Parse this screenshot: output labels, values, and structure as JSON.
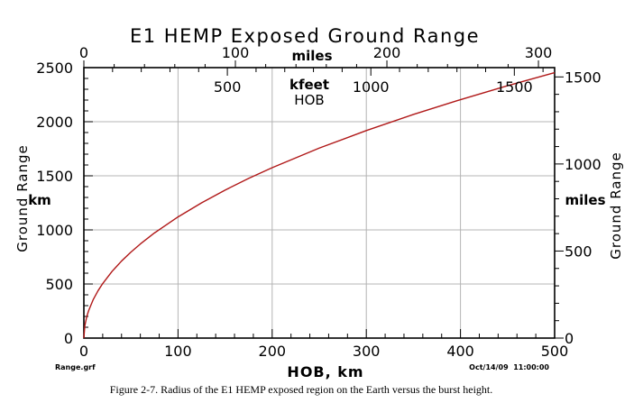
{
  "chart_data": {
    "type": "line",
    "title": "E1 HEMP Exposed Ground Range",
    "xlabel": "HOB, km",
    "ylabel_left": "Ground Range",
    "ylabel_left_unit": "km",
    "ylabel_right": "Ground Range",
    "ylabel_right_unit": "miles",
    "top_axis_miles_label": "miles",
    "top_axis_kfeet_label": "kfeet",
    "top_axis_kfeet_sublabel": "HOB",
    "xlim": [
      0,
      500
    ],
    "ylim": [
      0,
      2500
    ],
    "x_ticks": [
      0,
      100,
      200,
      300,
      400,
      500
    ],
    "y_ticks": [
      0,
      500,
      1000,
      1500,
      2000,
      2500
    ],
    "right_ticks_miles": [
      0,
      500,
      1000,
      1500
    ],
    "top_ticks_miles": [
      0,
      100,
      200,
      300
    ],
    "top_ticks_kfeet": [
      500,
      1000,
      1500
    ],
    "grid": true,
    "series": [
      {
        "name": "Exposed ground range",
        "color": "#b01818",
        "x": [
          0,
          1,
          3,
          5,
          10,
          15,
          20,
          30,
          40,
          50,
          60,
          75,
          100,
          125,
          150,
          175,
          200,
          250,
          300,
          350,
          400,
          450,
          500
        ],
        "y": [
          0,
          113,
          196,
          252,
          357,
          437,
          504,
          617,
          712,
          795,
          870,
          972,
          1120,
          1250,
          1368,
          1476,
          1575,
          1756,
          1918,
          2067,
          2204,
          2333,
          2454
        ]
      }
    ]
  },
  "footer": {
    "file_label": "Range.grf",
    "timestamp": "Oct/14/09  11:00:00"
  },
  "caption": "Figure 2-7. Radius of the E1 HEMP exposed region on the Earth versus the burst height."
}
